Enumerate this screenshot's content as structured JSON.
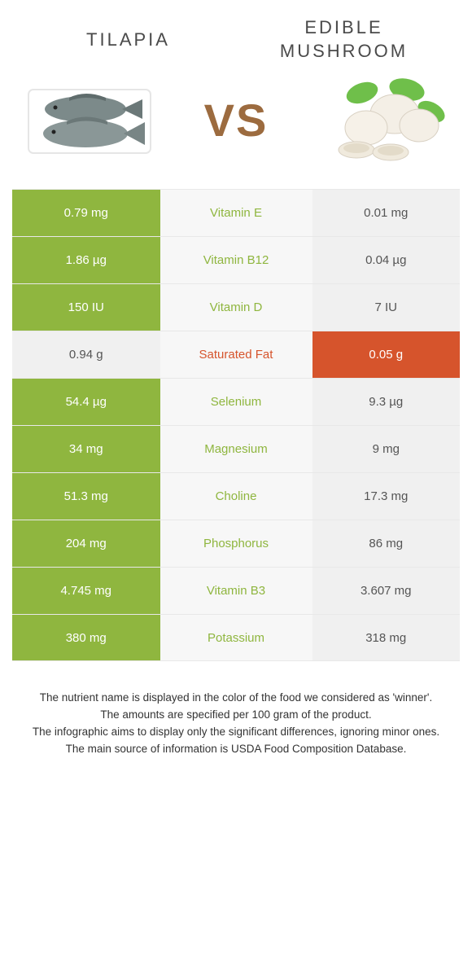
{
  "header": {
    "left_title": "Tilapia",
    "right_title": "Edible\nmushroom",
    "vs_label": "VS"
  },
  "colors": {
    "tilapia_winner": "#8fb63f",
    "mushroom_winner": "#d6542c",
    "neutral_left": "#f0f0f0",
    "neutral_right": "#f0f0f0",
    "neutral_text": "#555555",
    "mid_bg": "#f7f7f7",
    "vs_color": "#9c6b3f"
  },
  "rows": [
    {
      "nutrient": "Vitamin E",
      "left": "0.79 mg",
      "right": "0.01 mg",
      "winner": "left"
    },
    {
      "nutrient": "Vitamin B12",
      "left": "1.86 µg",
      "right": "0.04 µg",
      "winner": "left"
    },
    {
      "nutrient": "Vitamin D",
      "left": "150 IU",
      "right": "7 IU",
      "winner": "left"
    },
    {
      "nutrient": "Saturated Fat",
      "left": "0.94 g",
      "right": "0.05 g",
      "winner": "right"
    },
    {
      "nutrient": "Selenium",
      "left": "54.4 µg",
      "right": "9.3 µg",
      "winner": "left"
    },
    {
      "nutrient": "Magnesium",
      "left": "34 mg",
      "right": "9 mg",
      "winner": "left"
    },
    {
      "nutrient": "Choline",
      "left": "51.3 mg",
      "right": "17.3 mg",
      "winner": "left"
    },
    {
      "nutrient": "Phosphorus",
      "left": "204 mg",
      "right": "86 mg",
      "winner": "left"
    },
    {
      "nutrient": "Vitamin B3",
      "left": "4.745 mg",
      "right": "3.607 mg",
      "winner": "left"
    },
    {
      "nutrient": "Potassium",
      "left": "380 mg",
      "right": "318 mg",
      "winner": "left"
    }
  ],
  "notes": [
    "The nutrient name is displayed in the color of the food we considered as 'winner'.",
    "The amounts are specified per 100 gram of the product.",
    "The infographic aims to display only the significant differences, ignoring minor ones.",
    "The main source of information is USDA Food Composition Database."
  ]
}
